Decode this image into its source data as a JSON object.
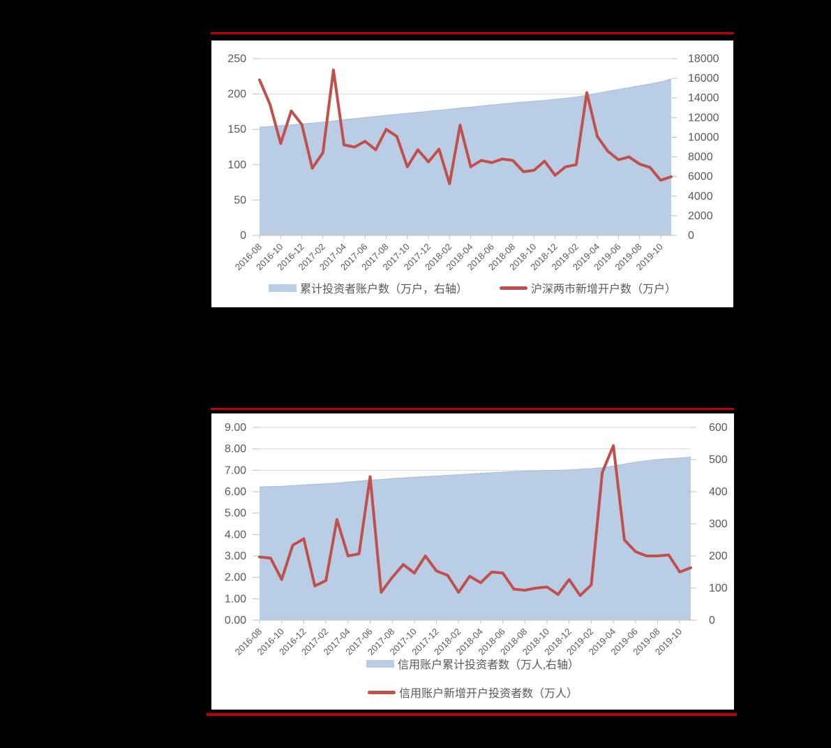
{
  "page": {
    "background_color": "#000000",
    "divider_color": "#c00000",
    "panel_color": "#ffffff",
    "text_color": "#595959",
    "grid_color": "#d9d9d9",
    "axisline_color": "#bfbfbf"
  },
  "chart_data": [
    {
      "type": "combo",
      "subtype": [
        "area",
        "line"
      ],
      "title": "",
      "categories": [
        "2016-08",
        "2016-09",
        "2016-10",
        "2016-11",
        "2016-12",
        "2017-01",
        "2017-02",
        "2017-03",
        "2017-04",
        "2017-05",
        "2017-06",
        "2017-07",
        "2017-08",
        "2017-09",
        "2017-10",
        "2017-11",
        "2017-12",
        "2018-01",
        "2018-02",
        "2018-03",
        "2018-04",
        "2018-05",
        "2018-06",
        "2018-07",
        "2018-08",
        "2018-09",
        "2018-10",
        "2018-11",
        "2018-12",
        "2019-01",
        "2019-02",
        "2019-03",
        "2019-04",
        "2019-05",
        "2019-06",
        "2019-07",
        "2019-08",
        "2019-09",
        "2019-10",
        "2019-11"
      ],
      "x_tick_labels": [
        "2016-08",
        "2016-10",
        "2016-12",
        "2017-02",
        "2017-04",
        "2017-06",
        "2017-08",
        "2017-10",
        "2017-12",
        "2018-02",
        "2018-04",
        "2018-06",
        "2018-08",
        "2018-10",
        "2018-12",
        "2019-02",
        "2019-04",
        "2019-06",
        "2019-08",
        "2019-10"
      ],
      "series": [
        {
          "name": "累计投资者账户数（万户，右轴）",
          "type": "area",
          "axis": "right",
          "color": "#b9cde5",
          "edge_color": "#a6bedb",
          "values": [
            11020,
            11100,
            11180,
            11260,
            11350,
            11440,
            11530,
            11650,
            11780,
            11900,
            12010,
            12120,
            12230,
            12340,
            12440,
            12540,
            12640,
            12740,
            12850,
            12960,
            13070,
            13180,
            13290,
            13390,
            13490,
            13580,
            13670,
            13760,
            13860,
            13970,
            14090,
            14280,
            14480,
            14670,
            14860,
            15050,
            15240,
            15430,
            15630,
            15940
          ]
        },
        {
          "name": "沪深两市新增开户数（万户）",
          "type": "line",
          "axis": "left",
          "color": "#c0504d",
          "values": [
            220,
            185,
            130,
            176,
            157,
            95,
            117,
            234,
            128,
            125,
            133,
            121,
            150,
            140,
            97,
            121,
            104,
            122,
            73,
            156,
            97,
            106,
            103,
            108,
            106,
            90,
            92,
            105,
            85,
            97,
            100,
            202,
            140,
            119,
            107,
            111,
            101,
            96,
            78,
            83
          ]
        }
      ],
      "left_axis": {
        "min": 0,
        "max": 250,
        "step": 50,
        "decimals": 0
      },
      "right_axis": {
        "min": 0,
        "max": 18000,
        "step": 2000,
        "decimals": 0
      },
      "grid": "horizontal",
      "legend_position": "bottom"
    },
    {
      "type": "combo",
      "subtype": [
        "area",
        "line"
      ],
      "title": "",
      "categories": [
        "2016-08",
        "2016-09",
        "2016-10",
        "2016-11",
        "2016-12",
        "2017-01",
        "2017-02",
        "2017-03",
        "2017-04",
        "2017-05",
        "2017-06",
        "2017-07",
        "2017-08",
        "2017-09",
        "2017-10",
        "2017-11",
        "2017-12",
        "2018-01",
        "2018-02",
        "2018-03",
        "2018-04",
        "2018-05",
        "2018-06",
        "2018-07",
        "2018-08",
        "2018-09",
        "2018-10",
        "2018-11",
        "2018-12",
        "2019-01",
        "2019-02",
        "2019-03",
        "2019-04",
        "2019-05",
        "2019-06",
        "2019-07",
        "2019-08",
        "2019-09",
        "2019-10",
        "2019-11"
      ],
      "x_tick_labels": [
        "2016-08",
        "2016-10",
        "2016-12",
        "2017-02",
        "2017-04",
        "2017-06",
        "2017-08",
        "2017-10",
        "2017-12",
        "2018-02",
        "2018-04",
        "2018-06",
        "2018-08",
        "2018-10",
        "2018-12",
        "2019-02",
        "2019-04",
        "2019-06",
        "2019-08",
        "2019-10"
      ],
      "series": [
        {
          "name": "信用账户累计投资者数（万人,右轴）",
          "type": "area",
          "axis": "right",
          "color": "#b9cde5",
          "edge_color": "#a6bedb",
          "values": [
            415,
            416,
            417,
            419,
            421,
            423,
            425,
            427,
            430,
            433,
            436,
            438,
            441,
            443,
            445,
            447,
            449,
            451,
            453,
            455,
            457,
            459,
            461,
            463,
            464,
            465,
            466,
            467,
            468,
            470,
            472,
            475,
            480,
            486,
            492,
            496,
            500,
            503,
            505,
            508
          ]
        },
        {
          "name": "信用账户新增开户投资者数（万人）",
          "type": "line",
          "axis": "left",
          "color": "#c0504d",
          "values": [
            2.95,
            2.9,
            1.9,
            3.5,
            3.8,
            1.6,
            1.85,
            4.7,
            3.0,
            3.1,
            6.7,
            1.3,
            2.0,
            2.6,
            2.2,
            3.0,
            2.3,
            2.1,
            1.3,
            2.05,
            1.75,
            2.25,
            2.2,
            1.45,
            1.4,
            1.5,
            1.55,
            1.2,
            1.9,
            1.15,
            1.65,
            6.9,
            8.15,
            3.75,
            3.2,
            3.0,
            3.0,
            3.05,
            2.25,
            2.45
          ]
        }
      ],
      "left_axis": {
        "min": 0,
        "max": 9,
        "step": 1,
        "decimals": 2
      },
      "right_axis": {
        "min": 0,
        "max": 600,
        "step": 100,
        "decimals": 0
      },
      "grid": "horizontal",
      "legend_position": "bottom"
    }
  ]
}
